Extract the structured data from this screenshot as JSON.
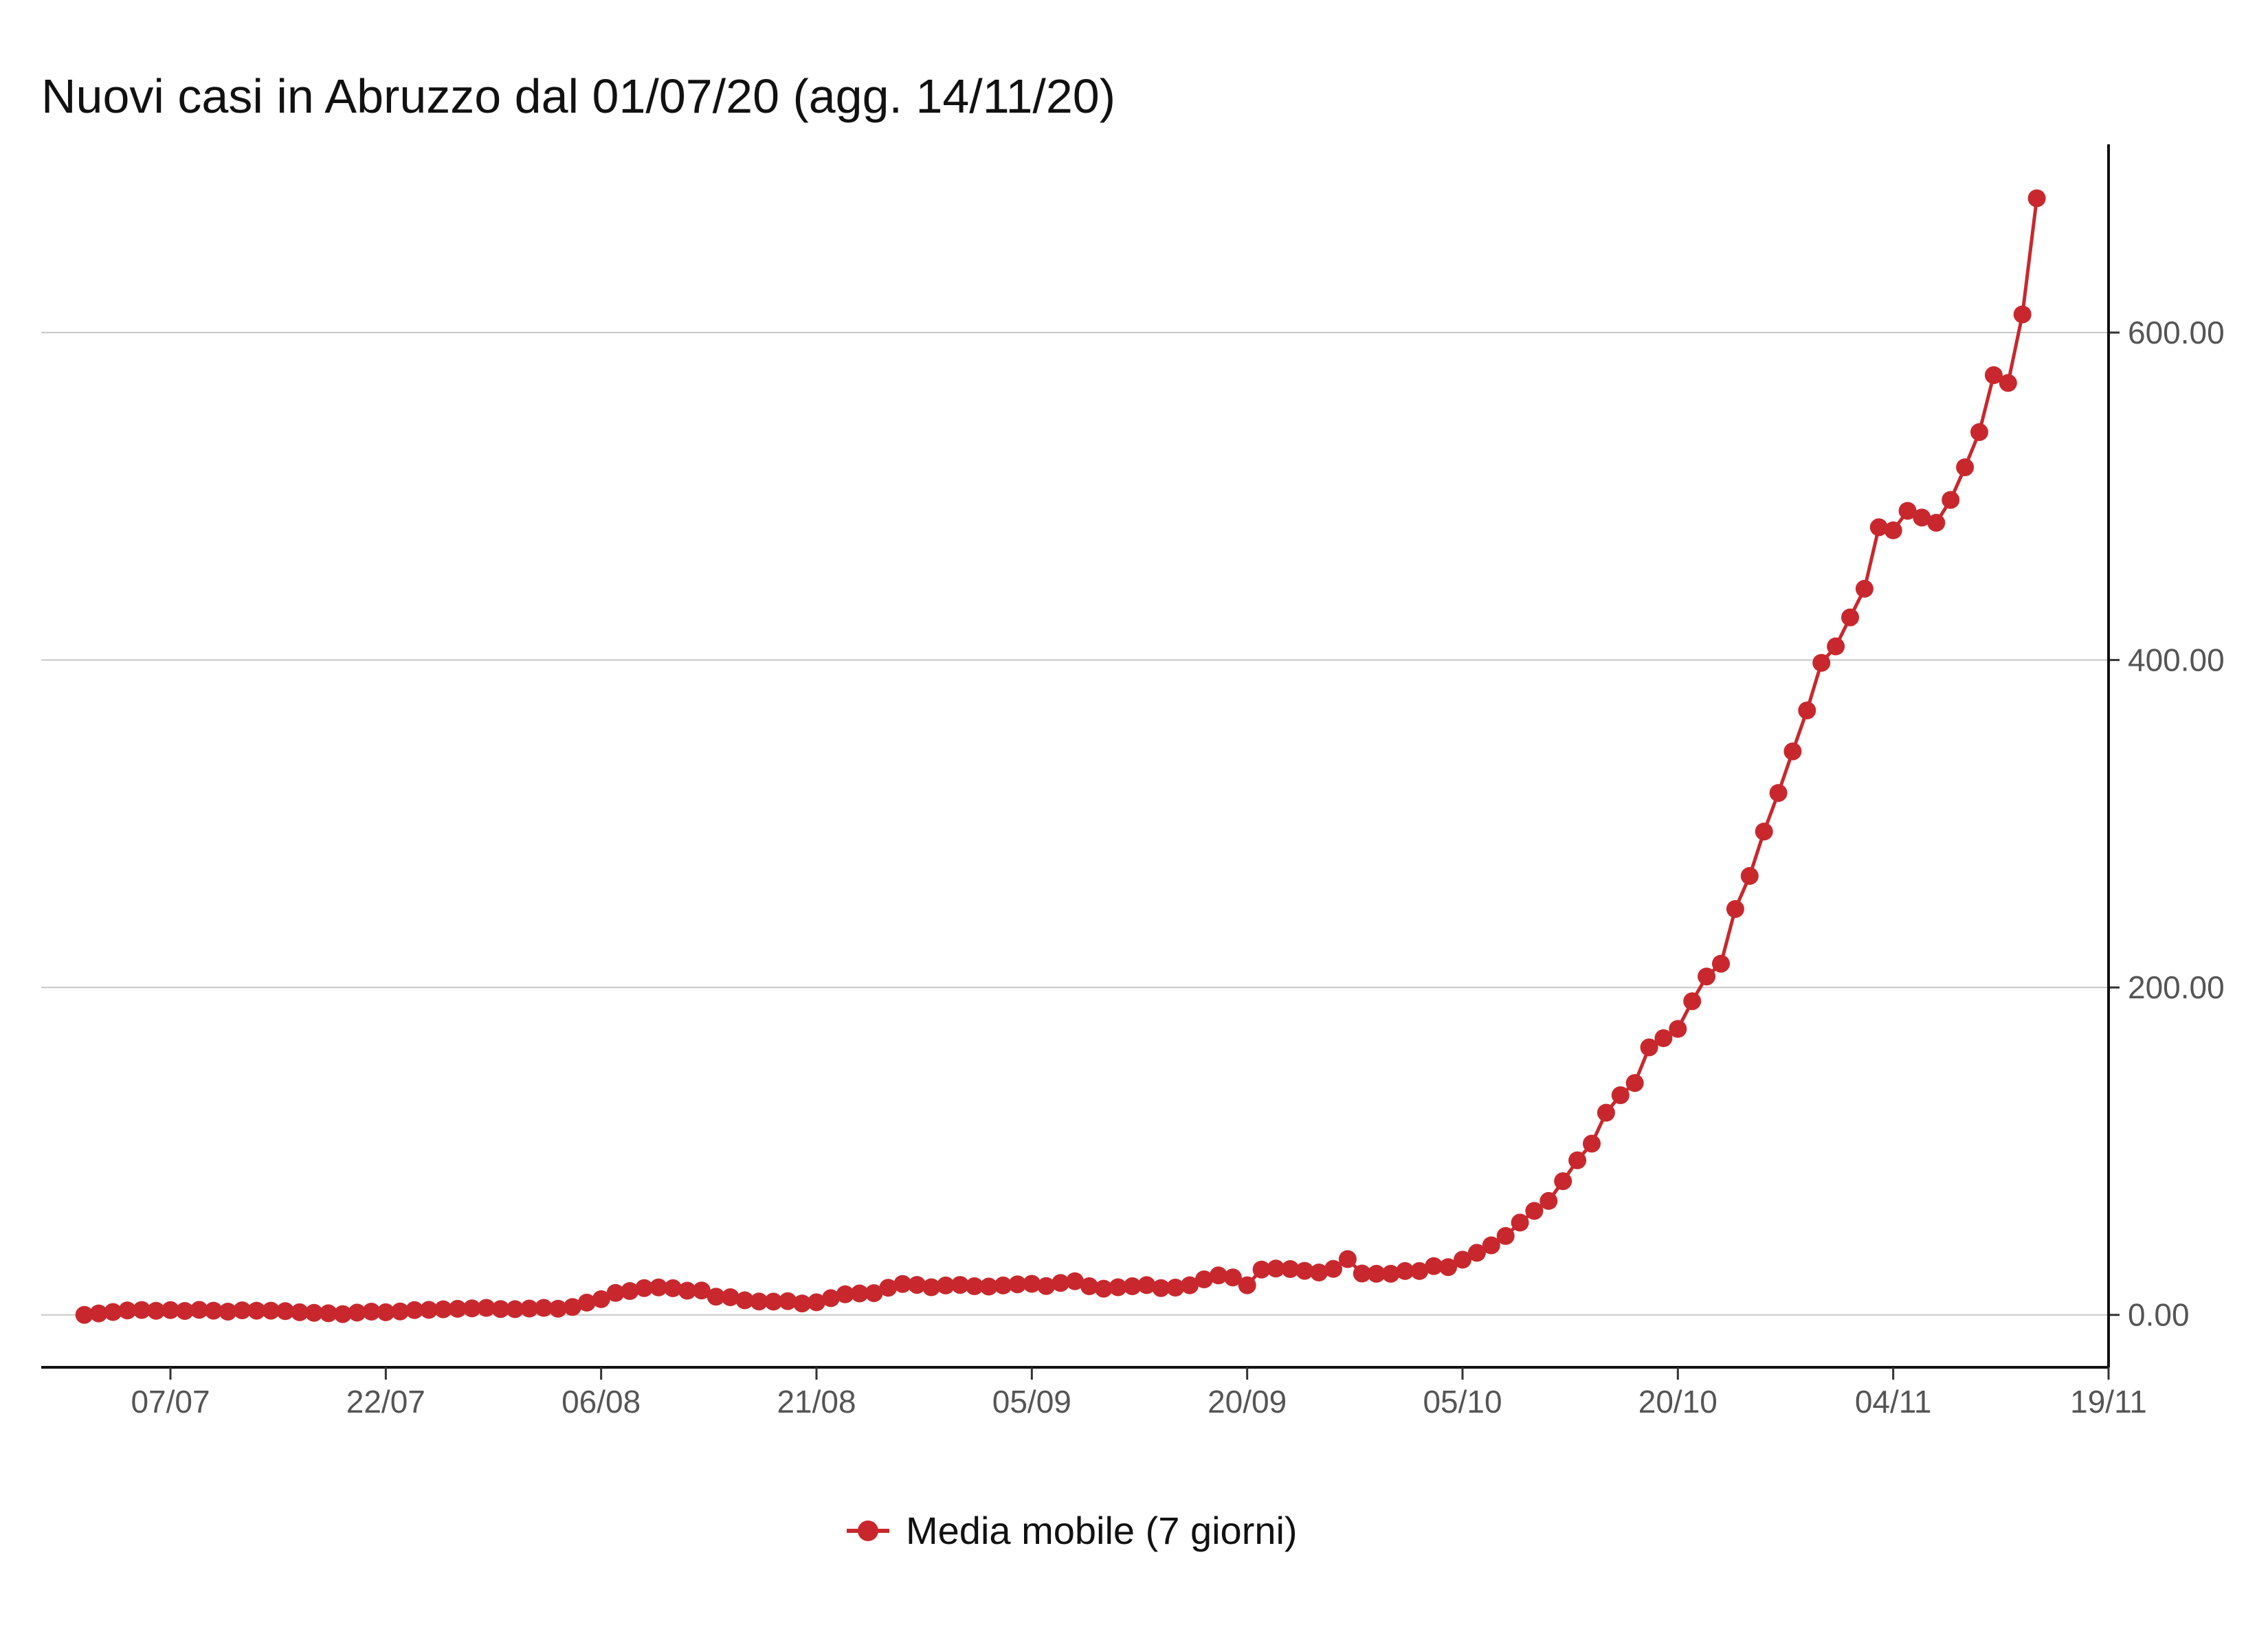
{
  "chart_data": {
    "type": "line",
    "title": "Nuovi casi in Abruzzo dal 01/07/20 (agg. 14/11/20)",
    "xlabel": "",
    "ylabel": "",
    "x_axis": {
      "min_date": "2020-06-28",
      "max_date": "2020-11-19",
      "ticks": [
        "07/07",
        "22/07",
        "06/08",
        "21/08",
        "05/09",
        "20/09",
        "05/10",
        "20/10",
        "04/11",
        "19/11"
      ],
      "tick_dates": [
        "2020-07-07",
        "2020-07-22",
        "2020-08-06",
        "2020-08-21",
        "2020-09-05",
        "2020-09-20",
        "2020-10-05",
        "2020-10-20",
        "2020-11-04",
        "2020-11-19"
      ]
    },
    "y_axis": {
      "position": "right",
      "ylim": [
        -32,
        715
      ],
      "ticks": [
        0,
        200,
        400,
        600
      ],
      "tick_labels": [
        "0.00",
        "200.00",
        "400.00",
        "600.00"
      ]
    },
    "grid": "horizontal",
    "legend": {
      "position": "bottom",
      "entries": [
        "Media mobile (7 giorni)"
      ]
    },
    "series": [
      {
        "name": "Media mobile (7 giorni)",
        "color": "#c8282d",
        "start_date": "2020-07-01",
        "end_date": "2020-11-14",
        "values": [
          0.0,
          0.9,
          1.8,
          2.7,
          3.0,
          2.5,
          2.9,
          2.4,
          3.1,
          2.6,
          2.0,
          2.8,
          2.6,
          2.6,
          2.3,
          1.6,
          1.3,
          1.0,
          0.5,
          1.4,
          2.0,
          1.6,
          2.1,
          2.9,
          3.1,
          3.4,
          3.7,
          4.0,
          4.3,
          3.6,
          3.5,
          3.9,
          4.3,
          3.8,
          4.8,
          7.5,
          9.6,
          13.4,
          14.6,
          16.4,
          16.8,
          16.3,
          14.8,
          14.9,
          11.1,
          10.8,
          8.9,
          8.2,
          8.1,
          8.4,
          7.0,
          7.7,
          10.2,
          12.6,
          13.1,
          13.3,
          16.6,
          18.9,
          18.3,
          16.9,
          18.0,
          18.3,
          17.5,
          17.3,
          18.0,
          18.7,
          19.0,
          17.6,
          19.5,
          20.6,
          17.5,
          16.0,
          16.9,
          17.5,
          18.2,
          16.4,
          16.7,
          18.1,
          21.7,
          24.1,
          22.9,
          18.1,
          27.7,
          28.3,
          28.0,
          26.9,
          25.9,
          28.1,
          34.1,
          25.3,
          25.1,
          25.1,
          26.8,
          26.8,
          29.8,
          29.2,
          33.7,
          37.9,
          42.5,
          48.2,
          56.4,
          63.5,
          69.6,
          81.7,
          94.4,
          104.6,
          123.5,
          134.2,
          141.6,
          163.4,
          169.0,
          174.7,
          191.6,
          206.7,
          214.5,
          247.9,
          268.1,
          295.2,
          318.8,
          344.2,
          369.2,
          398.3,
          408.3,
          426.0,
          443.5,
          481.1,
          479.2,
          491.1,
          487.0,
          483.8,
          497.8,
          517.7,
          539.2,
          574.0,
          569.2,
          611.1,
          682.0
        ]
      }
    ]
  }
}
